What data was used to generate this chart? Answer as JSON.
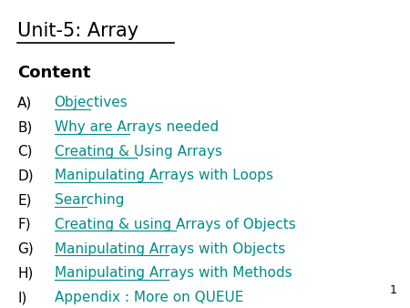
{
  "title": "Unit-5: Array",
  "subtitle": "Content",
  "title_color": "#000000",
  "subtitle_color": "#000000",
  "link_color": "#008B8B",
  "background_color": "#ffffff",
  "items": [
    {
      "label": "A)",
      "text": "Objectives"
    },
    {
      "label": "B)",
      "text": "Why are Arrays needed"
    },
    {
      "label": "C)",
      "text": "Creating & Using Arrays"
    },
    {
      "label": "D)",
      "text": "Manipulating Arrays with Loops"
    },
    {
      "label": "E)",
      "text": "Searching"
    },
    {
      "label": "F)",
      "text": "Creating & using Arrays of Objects"
    },
    {
      "label": "G)",
      "text": "Manipulating Arrays with Objects"
    },
    {
      "label": "H)",
      "text": "Manipulating Arrays with Methods"
    },
    {
      "label": "I)",
      "text": "Appendix : More on QUEUE"
    }
  ],
  "page_number": "1",
  "title_fontsize": 15,
  "subtitle_fontsize": 13,
  "item_fontsize": 11,
  "page_num_fontsize": 9
}
